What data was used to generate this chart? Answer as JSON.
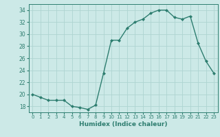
{
  "x": [
    0,
    1,
    2,
    3,
    4,
    5,
    6,
    7,
    8,
    9,
    10,
    11,
    12,
    13,
    14,
    15,
    16,
    17,
    18,
    19,
    20,
    21,
    22,
    23
  ],
  "y": [
    20,
    19.5,
    19,
    19,
    19,
    18,
    17.8,
    17.5,
    18.2,
    23.5,
    29,
    29,
    31,
    32,
    32.5,
    33.5,
    34,
    34,
    32.8,
    32.5,
    33,
    28.5,
    25.5,
    23.5
  ],
  "xlabel": "Humidex (Indice chaleur)",
  "xlim": [
    -0.5,
    23.5
  ],
  "ylim": [
    17,
    35
  ],
  "yticks": [
    18,
    20,
    22,
    24,
    26,
    28,
    30,
    32,
    34
  ],
  "xticks": [
    0,
    1,
    2,
    3,
    4,
    5,
    6,
    7,
    8,
    9,
    10,
    11,
    12,
    13,
    14,
    15,
    16,
    17,
    18,
    19,
    20,
    21,
    22,
    23
  ],
  "line_color": "#2d7d6f",
  "bg_color": "#cce9e7",
  "grid_color": "#aed4d1"
}
